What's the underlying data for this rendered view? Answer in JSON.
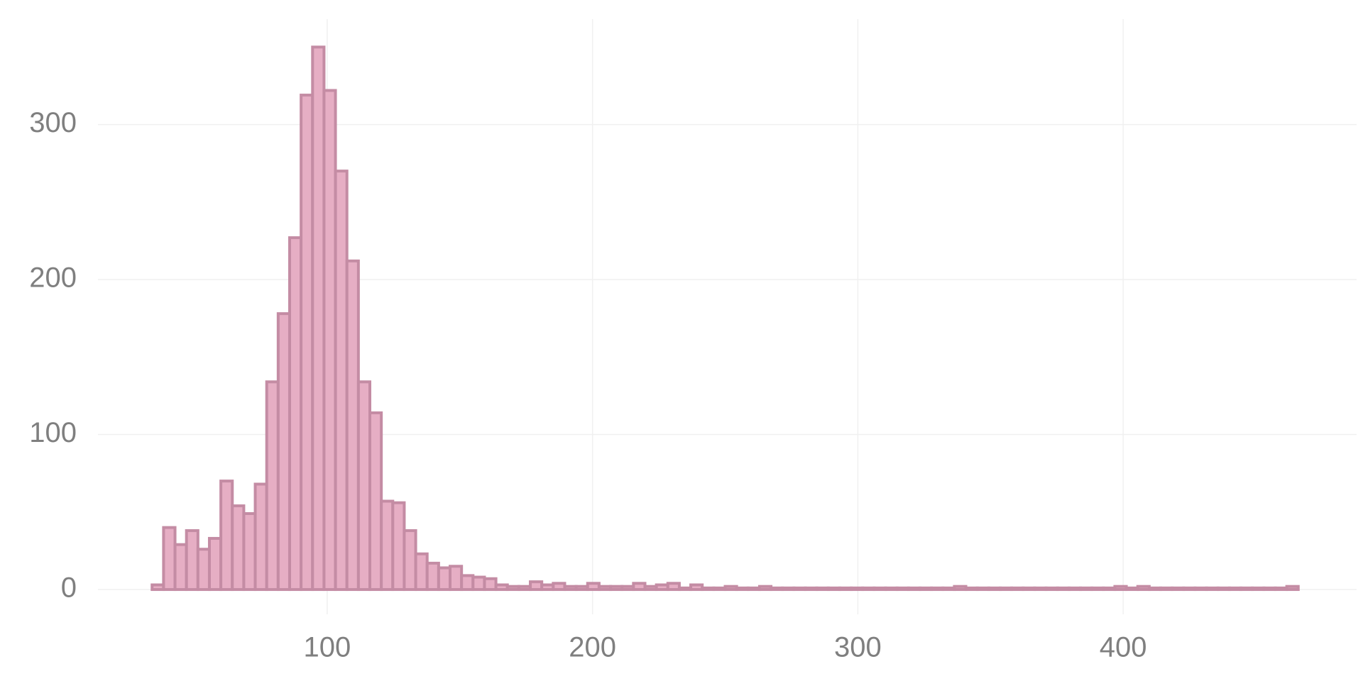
{
  "chart_data": {
    "type": "histogram",
    "bins": [
      34,
      38.32,
      42.64,
      46.96,
      51.28,
      55.6,
      59.92,
      64.24,
      68.56,
      72.88,
      77.2,
      81.52,
      85.84,
      90.16,
      94.48,
      98.8,
      103.12,
      107.44,
      111.76,
      116.08,
      120.4,
      124.72,
      129.04,
      133.36,
      137.68,
      142,
      146.32,
      150.64,
      154.96,
      159.28,
      163.6,
      167.92,
      172.24,
      176.56,
      180.88,
      185.2,
      189.52,
      193.84,
      198.16,
      202.48,
      206.8,
      211.12,
      215.44,
      219.76,
      224.08,
      228.4,
      232.72,
      237.04,
      241.36,
      245.68,
      250,
      254.32,
      258.64,
      262.96,
      267.28,
      271.6,
      275.92,
      280.24,
      284.56,
      288.88,
      293.2,
      297.52,
      301.84,
      306.16,
      310.48,
      314.8,
      319.12,
      323.44,
      327.76,
      332.08,
      336.4,
      340.72,
      345.04,
      349.36,
      353.68,
      358,
      362.32,
      366.64,
      370.96,
      375.28,
      379.6,
      383.92,
      388.24,
      392.56,
      396.88,
      401.2,
      405.52,
      409.84,
      414.16,
      418.48,
      422.8,
      427.12,
      431.44,
      435.76,
      440.08,
      444.4,
      448.72,
      453.04,
      457.36,
      461.68,
      466
    ],
    "values": [
      3,
      40,
      29,
      38,
      26,
      33,
      70,
      54,
      49,
      68,
      134,
      178,
      227,
      319,
      350,
      322,
      270,
      212,
      134,
      114,
      57,
      56,
      38,
      23,
      17,
      14,
      15,
      9,
      8,
      7,
      3,
      2,
      2,
      5,
      3,
      4,
      2,
      2,
      4,
      2,
      2,
      2,
      4,
      2,
      3,
      4,
      1,
      3,
      1,
      1,
      2,
      1,
      1,
      2,
      1,
      1,
      1,
      1,
      1,
      1,
      1,
      1,
      1,
      1,
      1,
      1,
      1,
      1,
      1,
      1,
      2,
      1,
      1,
      1,
      1,
      1,
      1,
      1,
      1,
      1,
      1,
      1,
      1,
      1,
      2,
      1,
      2,
      1,
      1,
      1,
      1,
      1,
      1,
      1,
      1,
      1,
      1,
      1,
      1,
      2
    ],
    "color": "#e6aec4",
    "edge_color": "#c48ca4",
    "xlim": [
      13.6,
      488
    ],
    "ylim": [
      -16,
      368
    ],
    "xticks": [
      100,
      200,
      300,
      400
    ],
    "yticks": [
      0,
      100,
      200,
      300
    ],
    "grid": true
  }
}
